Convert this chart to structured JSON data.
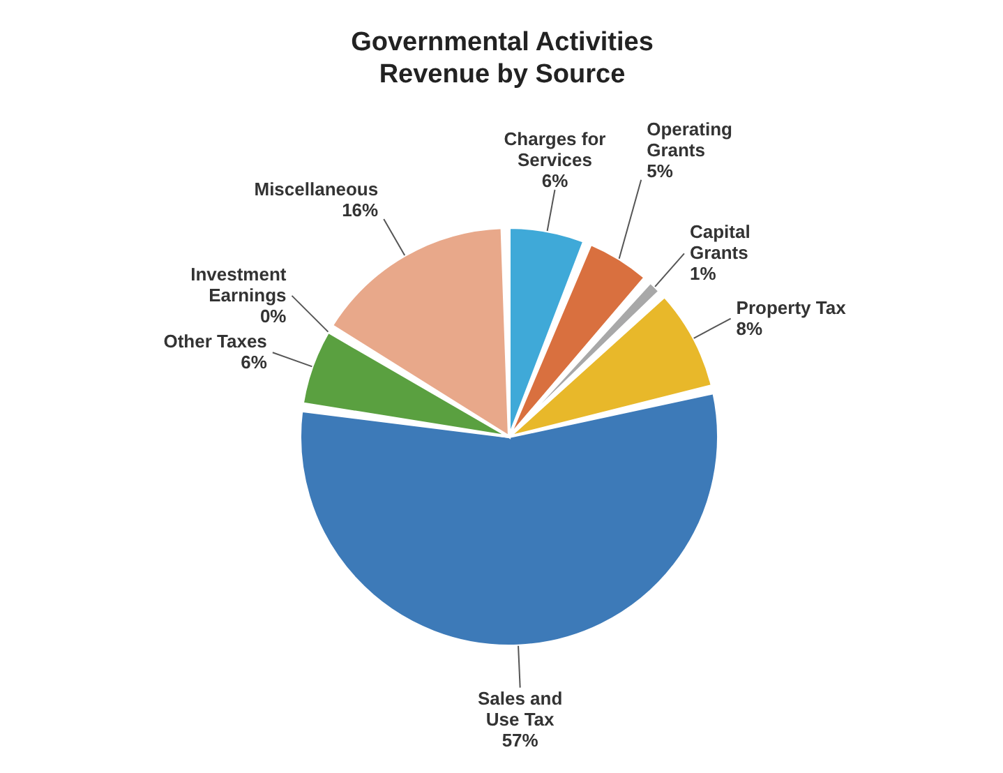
{
  "chart_data": {
    "type": "pie",
    "title": "Governmental Activities\nRevenue by Source",
    "categories": [
      "Charges for\nServices",
      "Operating\nGrants",
      "Capital\nGrants",
      "Property  Tax",
      "Sales and\nUse Tax",
      "Other Taxes",
      "Investment\nEarnings",
      "Miscellaneous"
    ],
    "values": [
      6,
      5,
      1,
      8,
      57,
      6,
      0,
      16
    ],
    "value_labels": [
      "6%",
      "5%",
      "1%",
      "8%",
      "57%",
      "6%",
      "0%",
      "16%"
    ],
    "colors": [
      "#3fa9d8",
      "#d9703f",
      "#a8a8a8",
      "#e8b82a",
      "#3d7ab8",
      "#5aa040",
      "#2e4a6a",
      "#e8a88a"
    ]
  }
}
